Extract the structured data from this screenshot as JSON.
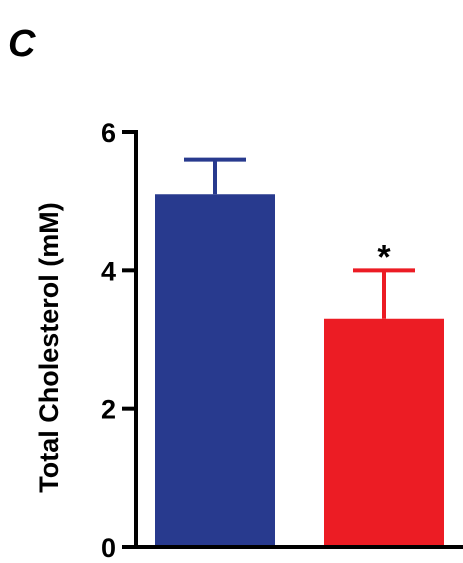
{
  "panel_label": "C",
  "chart_data": {
    "type": "bar",
    "categories": [
      "",
      ""
    ],
    "values": [
      5.1,
      3.3
    ],
    "errors": [
      0.5,
      0.7
    ],
    "colors": [
      "#283a8e",
      "#ec1c24"
    ],
    "ylabel": "Total Cholesterol (mM)",
    "xlabel": "",
    "ylim": [
      0,
      6
    ],
    "yticks": [
      0,
      2,
      4,
      6
    ],
    "ytick_labels": [
      "0",
      "2",
      "4",
      "6"
    ],
    "annotations": [
      {
        "bar_index": 1,
        "text": "*"
      }
    ],
    "grid": false,
    "legend": "none"
  }
}
